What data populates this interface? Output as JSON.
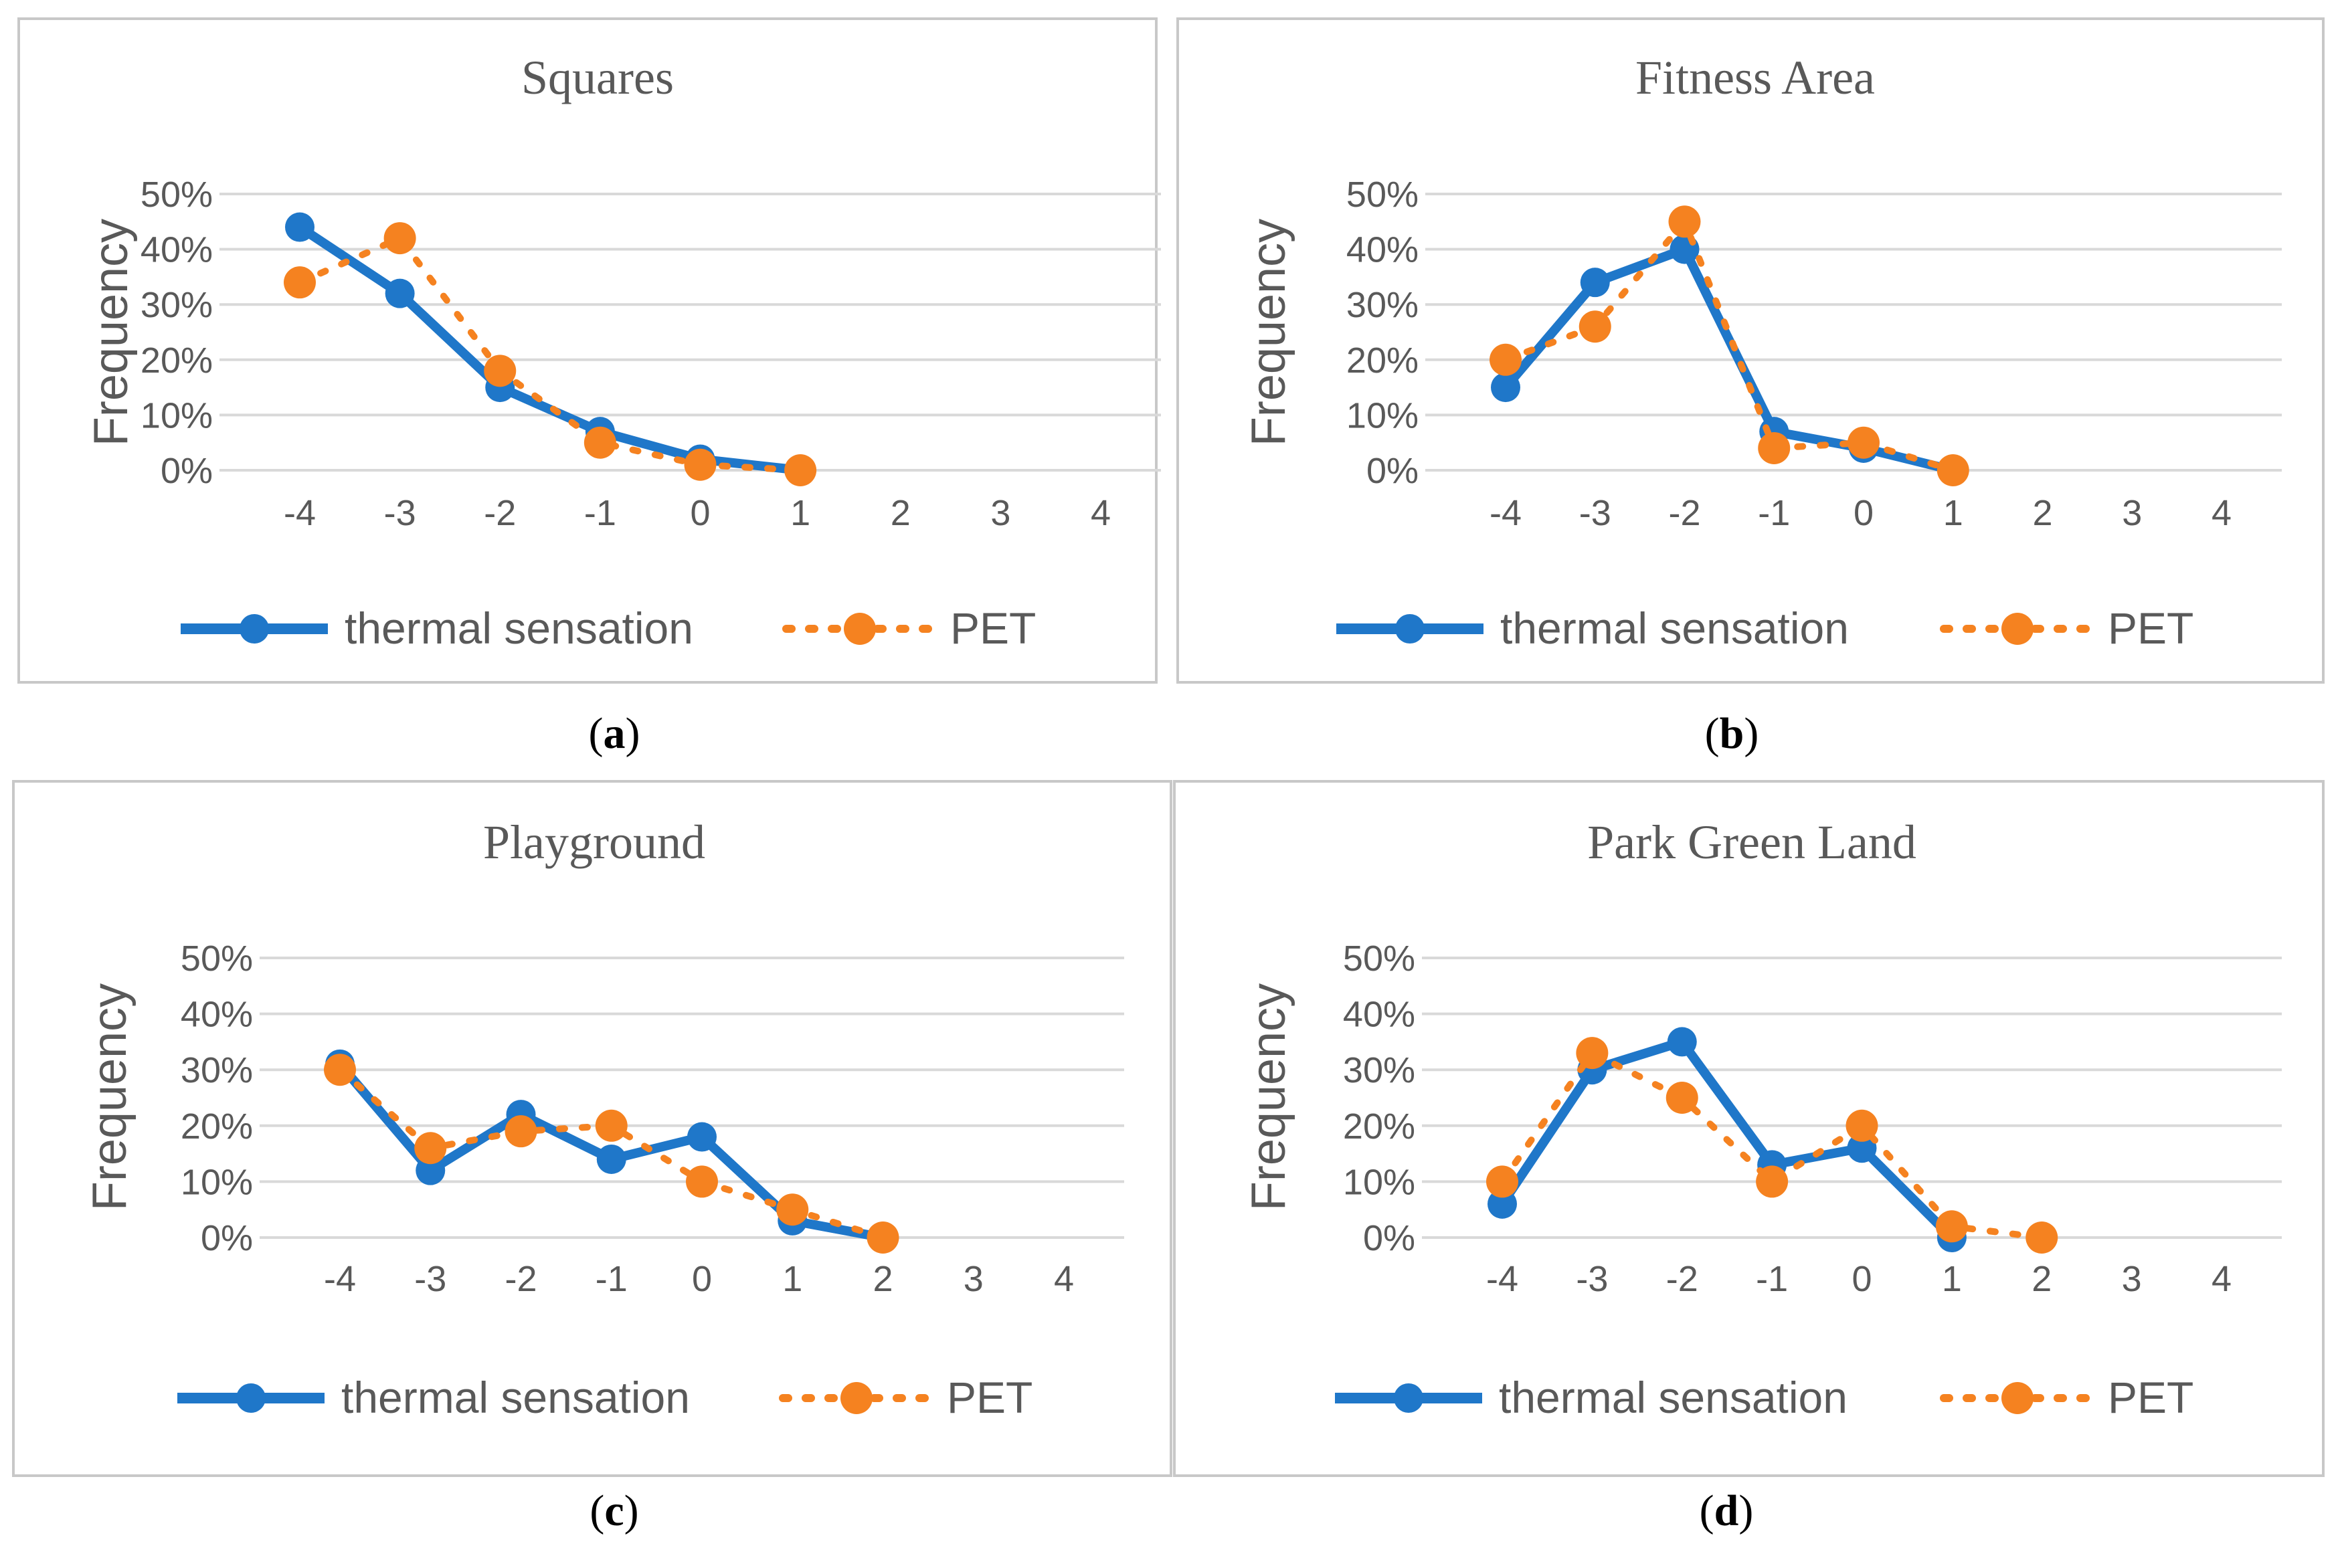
{
  "colors": {
    "thermal_sensation": "#1f77c9",
    "pet": "#f58220",
    "grid": "#d9d9d9",
    "frame": "#c8c8c8",
    "text": "#595959"
  },
  "chart_data": [
    {
      "type": "line",
      "title": "Squares",
      "caption": "a",
      "ylabel": "Frequency",
      "x_ticks": [
        "-4",
        "-3",
        "-2",
        "-1",
        "0",
        "1",
        "2",
        "3",
        "4"
      ],
      "y_ticks": [
        "0%",
        "10%",
        "20%",
        "30%",
        "40%",
        "50%"
      ],
      "xlim": [
        -4,
        4
      ],
      "ylim": [
        0,
        50
      ],
      "series": [
        {
          "name": "thermal sensation",
          "x": [
            -4,
            -3,
            -2,
            -1,
            0,
            1
          ],
          "values": [
            44,
            32,
            15,
            7,
            2,
            0
          ]
        },
        {
          "name": "PET",
          "x": [
            -4,
            -3,
            -2,
            -1,
            0,
            1
          ],
          "values": [
            34,
            42,
            18,
            5,
            1,
            0
          ]
        }
      ]
    },
    {
      "type": "line",
      "title": "Fitness Area",
      "caption": "b",
      "ylabel": "Frequency",
      "x_ticks": [
        "-4",
        "-3",
        "-2",
        "-1",
        "0",
        "1",
        "2",
        "3",
        "4"
      ],
      "y_ticks": [
        "0%",
        "10%",
        "20%",
        "30%",
        "40%",
        "50%"
      ],
      "xlim": [
        -4,
        4
      ],
      "ylim": [
        0,
        50
      ],
      "series": [
        {
          "name": "thermal sensation",
          "x": [
            -4,
            -3,
            -2,
            -1,
            0,
            1
          ],
          "values": [
            15,
            34,
            40,
            7,
            4,
            0
          ]
        },
        {
          "name": "PET",
          "x": [
            -4,
            -3,
            -2,
            -1,
            0,
            1
          ],
          "values": [
            20,
            26,
            45,
            4,
            5,
            0
          ]
        }
      ]
    },
    {
      "type": "line",
      "title": "Playground",
      "caption": "c",
      "ylabel": "Frequency",
      "x_ticks": [
        "-4",
        "-3",
        "-2",
        "-1",
        "0",
        "1",
        "2",
        "3",
        "4"
      ],
      "y_ticks": [
        "0%",
        "10%",
        "20%",
        "30%",
        "40%",
        "50%"
      ],
      "xlim": [
        -4,
        4
      ],
      "ylim": [
        0,
        50
      ],
      "series": [
        {
          "name": "thermal sensation",
          "x": [
            -4,
            -3,
            -2,
            -1,
            0,
            1,
            2
          ],
          "values": [
            31,
            12,
            22,
            14,
            18,
            3,
            0
          ]
        },
        {
          "name": "PET",
          "x": [
            -4,
            -3,
            -2,
            -1,
            0,
            1,
            2
          ],
          "values": [
            30,
            16,
            19,
            20,
            10,
            5,
            0
          ]
        }
      ]
    },
    {
      "type": "line",
      "title": "Park Green Land",
      "caption": "d",
      "ylabel": "Frequency",
      "x_ticks": [
        "-4",
        "-3",
        "-2",
        "-1",
        "0",
        "1",
        "2",
        "3",
        "4"
      ],
      "y_ticks": [
        "0%",
        "10%",
        "20%",
        "30%",
        "40%",
        "50%"
      ],
      "xlim": [
        -4,
        4
      ],
      "ylim": [
        0,
        50
      ],
      "series": [
        {
          "name": "thermal sensation",
          "x": [
            -4,
            -3,
            -2,
            -1,
            0,
            1
          ],
          "values": [
            6,
            30,
            35,
            13,
            16,
            0
          ]
        },
        {
          "name": "PET",
          "x": [
            -4,
            -3,
            -2,
            -1,
            0,
            1,
            2
          ],
          "values": [
            10,
            33,
            25,
            10,
            20,
            2,
            0
          ]
        }
      ]
    }
  ]
}
